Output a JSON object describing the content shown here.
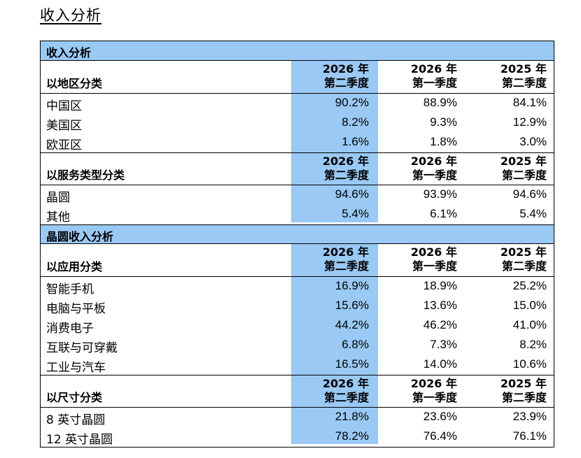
{
  "page_title": "收入分析",
  "table_title": "收入分析",
  "col_headers": [
    {
      "year": "2026 年",
      "quarter": "第二季度"
    },
    {
      "year": "2026 年",
      "quarter": "第一季度"
    },
    {
      "year": "2025 年",
      "quarter": "第二季度"
    }
  ],
  "region": {
    "title": "以地区分类",
    "rows": [
      {
        "label": "中国区",
        "values": [
          "90.2%",
          "88.9%",
          "84.1%"
        ]
      },
      {
        "label": "美国区",
        "values": [
          "8.2%",
          "9.3%",
          "12.9%"
        ]
      },
      {
        "label": "欧亚区",
        "values": [
          "1.6%",
          "1.8%",
          "3.0%"
        ]
      }
    ]
  },
  "service": {
    "title": "以服务类型分类",
    "rows": [
      {
        "label": "晶圆",
        "values": [
          "94.6%",
          "93.9%",
          "94.6%"
        ]
      },
      {
        "label": "其他",
        "values": [
          "5.4%",
          "6.1%",
          "5.4%"
        ]
      }
    ]
  },
  "wafer_section_title": "晶圆收入分析",
  "application": {
    "title": "以应用分类",
    "rows": [
      {
        "label": "智能手机",
        "values": [
          "16.9%",
          "18.9%",
          "25.2%"
        ]
      },
      {
        "label": "电脑与平板",
        "values": [
          "15.6%",
          "13.6%",
          "15.0%"
        ]
      },
      {
        "label": "消费电子",
        "values": [
          "44.2%",
          "46.2%",
          "41.0%"
        ]
      },
      {
        "label": "互联与可穿戴",
        "values": [
          "6.8%",
          "7.3%",
          "8.2%"
        ]
      },
      {
        "label": "工业与汽车",
        "values": [
          "16.5%",
          "14.0%",
          "10.6%"
        ]
      }
    ]
  },
  "size": {
    "title": "以尺寸分类",
    "rows": [
      {
        "label": "8 英寸晶圆",
        "values": [
          "21.8%",
          "23.6%",
          "23.9%"
        ]
      },
      {
        "label": "12 英寸晶圆",
        "values": [
          "78.2%",
          "76.4%",
          "76.1%"
        ]
      }
    ]
  }
}
